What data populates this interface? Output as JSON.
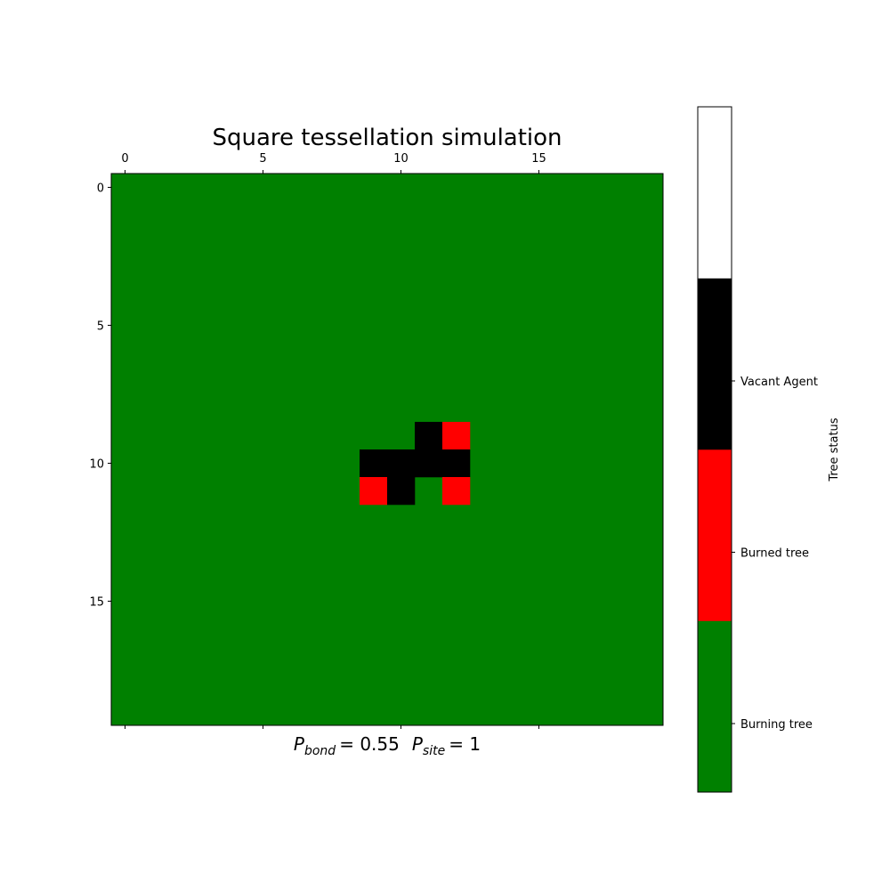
{
  "chart_data": {
    "type": "heatmap",
    "title": "Square tessellation simulation",
    "xlabel_parts": {
      "bond_symbol": "P",
      "bond_sub": "bond",
      "bond_value": "= 0.55",
      "site_symbol": "P",
      "site_sub": "site",
      "site_value": "= 1"
    },
    "grid_size": 20,
    "x_ticks": [
      0,
      5,
      10,
      15
    ],
    "y_ticks": [
      0,
      5,
      10,
      15
    ],
    "x_ticks_position": "top",
    "background_state": 0,
    "states": [
      {
        "value": 0,
        "color": "#008000"
      },
      {
        "value": 1,
        "color": "#ff0000"
      },
      {
        "value": 2,
        "color": "#000000"
      },
      {
        "value": 3,
        "color": "#ffffff"
      }
    ],
    "cells": [
      {
        "row": 9,
        "col": 11,
        "state": 2
      },
      {
        "row": 9,
        "col": 12,
        "state": 1
      },
      {
        "row": 10,
        "col": 9,
        "state": 2
      },
      {
        "row": 10,
        "col": 10,
        "state": 2
      },
      {
        "row": 10,
        "col": 11,
        "state": 2
      },
      {
        "row": 10,
        "col": 12,
        "state": 2
      },
      {
        "row": 11,
        "col": 9,
        "state": 1
      },
      {
        "row": 11,
        "col": 10,
        "state": 2
      },
      {
        "row": 11,
        "col": 12,
        "state": 1
      }
    ],
    "colorbar": {
      "label": "Tree status",
      "ticks": [
        {
          "label": "Burning tree",
          "value": 0.2
        },
        {
          "label": "Burned tree",
          "value": 1.2
        },
        {
          "label": "Vacant Agent",
          "value": 2.2
        }
      ],
      "range": [
        -0.2,
        3.8
      ],
      "segments": [
        {
          "from": -0.2,
          "to": 0.8,
          "color": "#008000"
        },
        {
          "from": 0.8,
          "to": 1.8,
          "color": "#ff0000"
        },
        {
          "from": 1.8,
          "to": 2.8,
          "color": "#000000"
        },
        {
          "from": 2.8,
          "to": 3.8,
          "color": "#ffffff"
        }
      ]
    }
  }
}
